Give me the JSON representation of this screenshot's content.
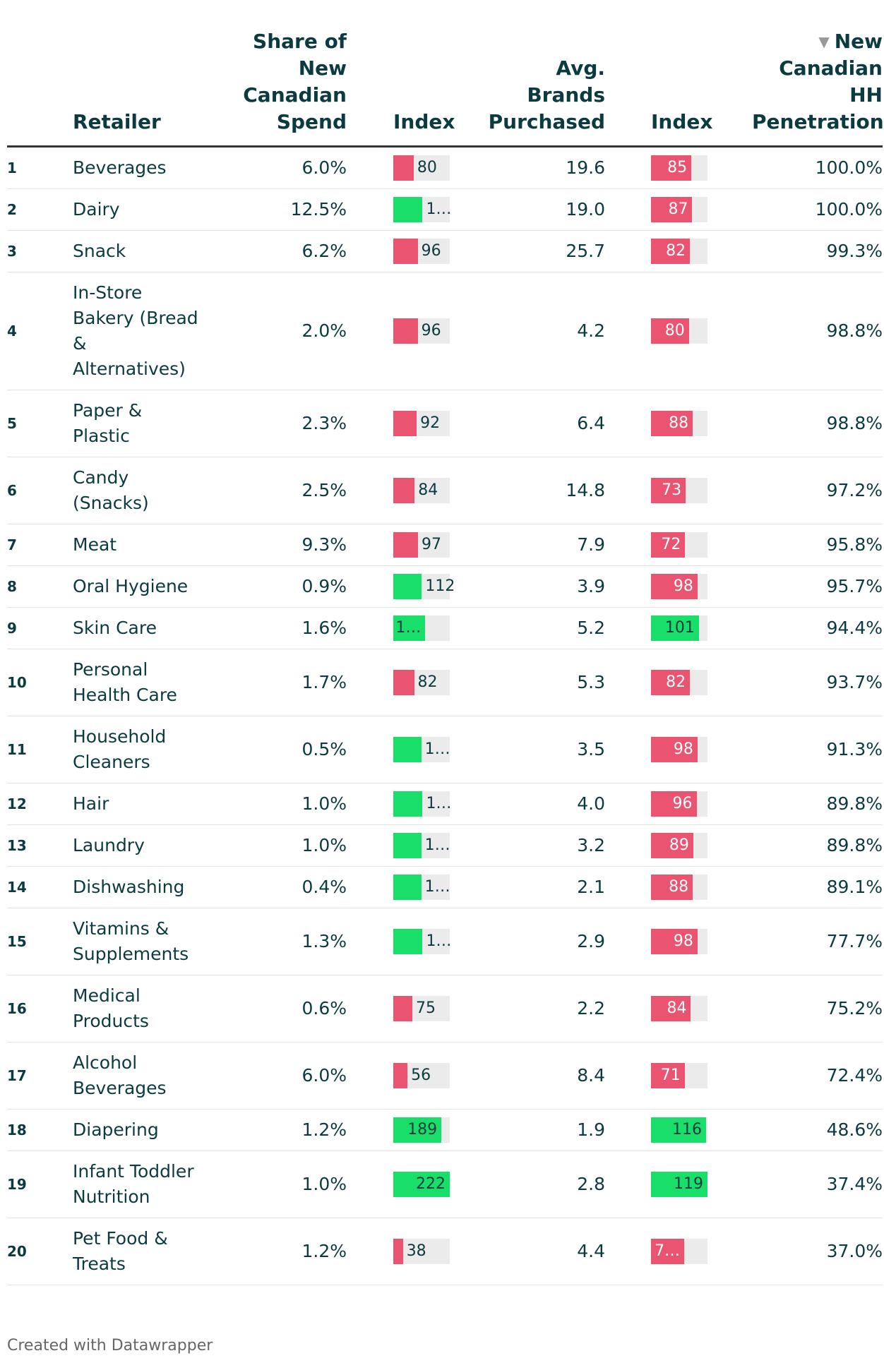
{
  "table": {
    "headers": {
      "retailer": "Retailer",
      "share": "Share of New Canadian Spend",
      "index": "Index",
      "brands": "Avg. Brands Purchased",
      "brands_index": "Index",
      "penetration": "New Canadian HH Penetration"
    },
    "rows": [
      {
        "rank": "1",
        "retailer": "Beverages",
        "share": "6.0%",
        "index": 80,
        "brands": "19.6",
        "brands_index": 85,
        "penetration": "100.0%"
      },
      {
        "rank": "2",
        "retailer": "Dairy",
        "share": "12.5%",
        "index": 115,
        "index_label": "1…",
        "brands": "19.0",
        "brands_index": 87,
        "penetration": "100.0%"
      },
      {
        "rank": "3",
        "retailer": "Snack",
        "share": "6.2%",
        "index": 96,
        "brands": "25.7",
        "brands_index": 82,
        "penetration": "99.3%"
      },
      {
        "rank": "4",
        "retailer": "In-Store Bakery (Bread & Alternatives)",
        "share": "2.0%",
        "index": 96,
        "brands": "4.2",
        "brands_index": 80,
        "penetration": "98.8%"
      },
      {
        "rank": "5",
        "retailer": "Paper & Plastic",
        "share": "2.3%",
        "index": 92,
        "brands": "6.4",
        "brands_index": 88,
        "penetration": "98.8%"
      },
      {
        "rank": "6",
        "retailer": "Candy (Snacks)",
        "share": "2.5%",
        "index": 84,
        "brands": "14.8",
        "brands_index": 73,
        "penetration": "97.2%"
      },
      {
        "rank": "7",
        "retailer": "Meat",
        "share": "9.3%",
        "index": 97,
        "brands": "7.9",
        "brands_index": 72,
        "penetration": "95.8%"
      },
      {
        "rank": "8",
        "retailer": "Oral Hygiene",
        "share": "0.9%",
        "index": 112,
        "brands": "3.9",
        "brands_index": 98,
        "penetration": "95.7%"
      },
      {
        "rank": "9",
        "retailer": "Skin Care",
        "share": "1.6%",
        "index": 126,
        "index_label": "1…",
        "brands": "5.2",
        "brands_index": 101,
        "penetration": "94.4%"
      },
      {
        "rank": "10",
        "retailer": "Personal Health Care",
        "share": "1.7%",
        "index": 82,
        "brands": "5.3",
        "brands_index": 82,
        "penetration": "93.7%"
      },
      {
        "rank": "11",
        "retailer": "Household Cleaners",
        "share": "0.5%",
        "index": 110,
        "index_label": "1…",
        "brands": "3.5",
        "brands_index": 98,
        "penetration": "91.3%"
      },
      {
        "rank": "12",
        "retailer": "Hair",
        "share": "1.0%",
        "index": 115,
        "index_label": "1…",
        "brands": "4.0",
        "brands_index": 96,
        "penetration": "89.8%"
      },
      {
        "rank": "13",
        "retailer": "Laundry",
        "share": "1.0%",
        "index": 110,
        "index_label": "1…",
        "brands": "3.2",
        "brands_index": 89,
        "penetration": "89.8%"
      },
      {
        "rank": "14",
        "retailer": "Dishwashing",
        "share": "0.4%",
        "index": 110,
        "index_label": "1…",
        "brands": "2.1",
        "brands_index": 88,
        "penetration": "89.1%"
      },
      {
        "rank": "15",
        "retailer": "Vitamins & Supplements",
        "share": "1.3%",
        "index": 115,
        "index_label": "1…",
        "brands": "2.9",
        "brands_index": 98,
        "penetration": "77.7%"
      },
      {
        "rank": "16",
        "retailer": "Medical Products",
        "share": "0.6%",
        "index": 75,
        "brands": "2.2",
        "brands_index": 84,
        "penetration": "75.2%"
      },
      {
        "rank": "17",
        "retailer": "Alcohol Beverages",
        "share": "6.0%",
        "index": 56,
        "brands": "8.4",
        "brands_index": 71,
        "penetration": "72.4%"
      },
      {
        "rank": "18",
        "retailer": "Diapering",
        "share": "1.2%",
        "index": 189,
        "brands": "1.9",
        "brands_index": 116,
        "penetration": "48.6%"
      },
      {
        "rank": "19",
        "retailer": "Infant Toddler Nutrition",
        "share": "1.0%",
        "index": 222,
        "brands": "2.8",
        "brands_index": 119,
        "penetration": "37.4%"
      },
      {
        "rank": "20",
        "retailer": "Pet Food & Treats",
        "share": "1.2%",
        "index": 38,
        "brands": "4.4",
        "brands_index": 70,
        "brands_index_label": "7…",
        "penetration": "37.0%"
      }
    ]
  },
  "footer": "Created with Datawrapper"
}
